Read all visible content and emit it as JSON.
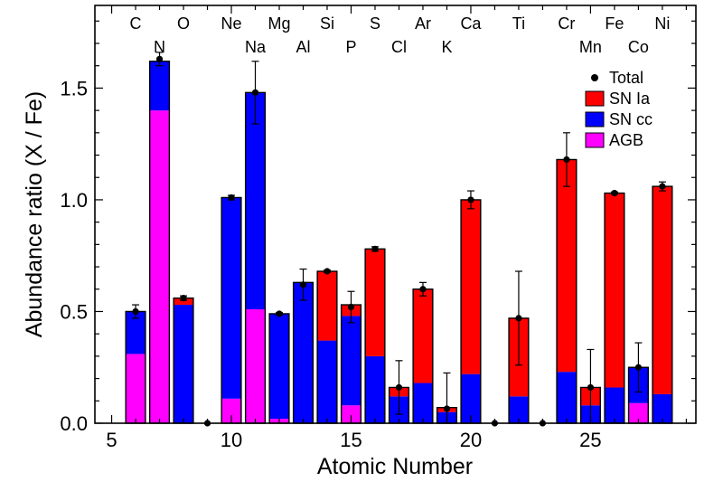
{
  "chart_data": {
    "type": "bar",
    "stacked": true,
    "xlabel": "Atomic Number",
    "ylabel": "Abundance ratio (X / Fe)",
    "xlim": [
      4.3,
      29.4
    ],
    "ylim": [
      0.0,
      1.87
    ],
    "x_ticks": [
      5,
      10,
      15,
      20,
      25
    ],
    "x_tick_labels": [
      "5",
      "10",
      "15",
      "20",
      "25"
    ],
    "y_ticks": [
      0.0,
      0.5,
      1.0,
      1.5
    ],
    "y_tick_labels": [
      "0.0",
      "0.5",
      "1.0",
      "1.5"
    ],
    "grid": false,
    "legend_position": "top-right",
    "colors": {
      "agb": "#ff00ff",
      "sncc": "#0000ff",
      "snia": "#ff0000",
      "total": "#000000"
    },
    "legend": [
      {
        "label": "Total",
        "key": "total",
        "kind": "marker"
      },
      {
        "label": "SN Ia",
        "key": "snia",
        "kind": "box"
      },
      {
        "label": "SN cc",
        "key": "sncc",
        "kind": "box"
      },
      {
        "label": "AGB",
        "key": "agb",
        "kind": "box"
      }
    ],
    "element_labels": [
      {
        "z": 6,
        "label": "C",
        "row": 1
      },
      {
        "z": 7,
        "label": "N",
        "row": 2
      },
      {
        "z": 8,
        "label": "O",
        "row": 1
      },
      {
        "z": 10,
        "label": "Ne",
        "row": 1
      },
      {
        "z": 11,
        "label": "Na",
        "row": 2
      },
      {
        "z": 12,
        "label": "Mg",
        "row": 1
      },
      {
        "z": 13,
        "label": "Al",
        "row": 2
      },
      {
        "z": 14,
        "label": "Si",
        "row": 1
      },
      {
        "z": 15,
        "label": "P",
        "row": 2
      },
      {
        "z": 16,
        "label": "S",
        "row": 1
      },
      {
        "z": 17,
        "label": "Cl",
        "row": 2
      },
      {
        "z": 18,
        "label": "Ar",
        "row": 1
      },
      {
        "z": 19,
        "label": "K",
        "row": 2
      },
      {
        "z": 20,
        "label": "Ca",
        "row": 1
      },
      {
        "z": 22,
        "label": "Ti",
        "row": 1
      },
      {
        "z": 24,
        "label": "Cr",
        "row": 1
      },
      {
        "z": 25,
        "label": "Mn",
        "row": 2
      },
      {
        "z": 26,
        "label": "Fe",
        "row": 1
      },
      {
        "z": 27,
        "label": "Co",
        "row": 2
      },
      {
        "z": 28,
        "label": "Ni",
        "row": 1
      }
    ],
    "bars": [
      {
        "z": 6,
        "agb": 0.31,
        "sncc": 0.19,
        "snia": 0.0,
        "total": 0.5,
        "err": 0.03
      },
      {
        "z": 7,
        "agb": 1.4,
        "sncc": 0.22,
        "snia": 0.0,
        "total": 1.63,
        "err": 0.03
      },
      {
        "z": 8,
        "agb": 0.0,
        "sncc": 0.53,
        "snia": 0.03,
        "total": 0.56,
        "err": 0.01
      },
      {
        "z": 9,
        "agb": 0.0,
        "sncc": 0.0,
        "snia": 0.0,
        "total": 0.0,
        "err": 0.0
      },
      {
        "z": 10,
        "agb": 0.11,
        "sncc": 0.9,
        "snia": 0.0,
        "total": 1.01,
        "err": 0.01
      },
      {
        "z": 11,
        "agb": 0.51,
        "sncc": 0.97,
        "snia": 0.0,
        "total": 1.48,
        "err": 0.14
      },
      {
        "z": 12,
        "agb": 0.02,
        "sncc": 0.47,
        "snia": 0.0,
        "total": 0.49,
        "err": 0.005
      },
      {
        "z": 13,
        "agb": 0.0,
        "sncc": 0.63,
        "snia": 0.0,
        "total": 0.62,
        "err": 0.07
      },
      {
        "z": 14,
        "agb": 0.0,
        "sncc": 0.37,
        "snia": 0.31,
        "total": 0.68,
        "err": 0.005
      },
      {
        "z": 15,
        "agb": 0.08,
        "sncc": 0.4,
        "snia": 0.05,
        "total": 0.52,
        "err": 0.07
      },
      {
        "z": 16,
        "agb": 0.0,
        "sncc": 0.3,
        "snia": 0.48,
        "total": 0.78,
        "err": 0.01
      },
      {
        "z": 17,
        "agb": 0.0,
        "sncc": 0.12,
        "snia": 0.04,
        "total": 0.16,
        "err": 0.12
      },
      {
        "z": 18,
        "agb": 0.0,
        "sncc": 0.18,
        "snia": 0.42,
        "total": 0.6,
        "err": 0.03
      },
      {
        "z": 19,
        "agb": 0.0,
        "sncc": 0.05,
        "snia": 0.02,
        "total": 0.065,
        "err": 0.16
      },
      {
        "z": 20,
        "agb": 0.0,
        "sncc": 0.22,
        "snia": 0.78,
        "total": 1.0,
        "err": 0.04
      },
      {
        "z": 21,
        "agb": 0.0,
        "sncc": 0.0,
        "snia": 0.0,
        "total": 0.0,
        "err": 0.0
      },
      {
        "z": 22,
        "agb": 0.0,
        "sncc": 0.12,
        "snia": 0.35,
        "total": 0.47,
        "err": 0.21
      },
      {
        "z": 23,
        "agb": 0.0,
        "sncc": 0.0,
        "snia": 0.0,
        "total": 0.0,
        "err": 0.0
      },
      {
        "z": 24,
        "agb": 0.0,
        "sncc": 0.23,
        "snia": 0.95,
        "total": 1.18,
        "err": 0.12
      },
      {
        "z": 25,
        "agb": 0.0,
        "sncc": 0.08,
        "snia": 0.08,
        "total": 0.16,
        "err": 0.17
      },
      {
        "z": 26,
        "agb": 0.0,
        "sncc": 0.16,
        "snia": 0.87,
        "total": 1.03,
        "err": 0.005
      },
      {
        "z": 27,
        "agb": 0.09,
        "sncc": 0.16,
        "snia": 0.0,
        "total": 0.25,
        "err": 0.11
      },
      {
        "z": 28,
        "agb": 0.0,
        "sncc": 0.13,
        "snia": 0.93,
        "total": 1.06,
        "err": 0.02
      }
    ]
  }
}
